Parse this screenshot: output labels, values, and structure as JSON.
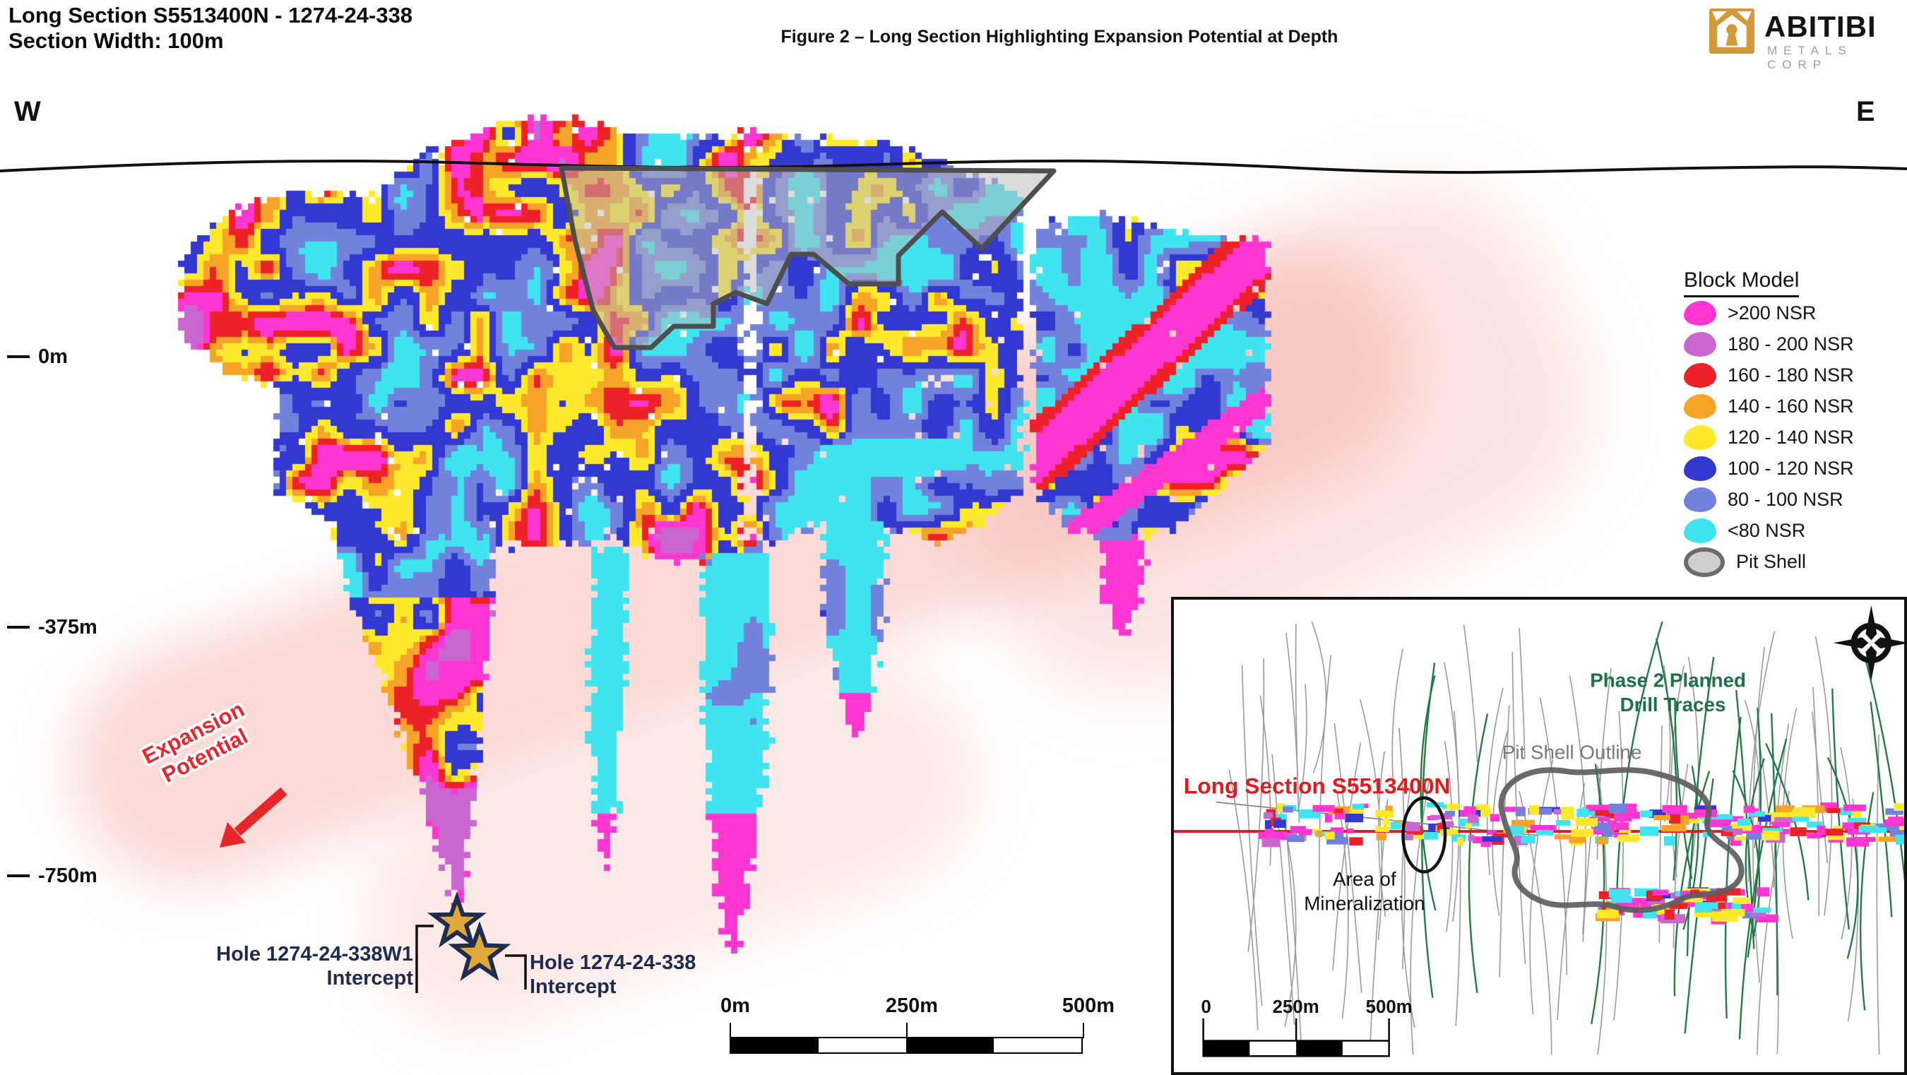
{
  "header": {
    "title_line1": "Long Section S5513400N - 1274-24-338",
    "title_line2": "Section Width: 100m",
    "figure_caption": "Figure 2 – Long Section Highlighting Expansion Potential at Depth",
    "logo": {
      "name": "ABITIBI",
      "subtitle": "METALS CORP",
      "gold": "#d49a3a"
    }
  },
  "section": {
    "direction_west": "W",
    "direction_east": "E",
    "depth_ticks": [
      {
        "label": "0m"
      },
      {
        "label": "-375m"
      },
      {
        "label": "-750m"
      }
    ],
    "expansion_label_line1": "Expansion",
    "expansion_label_line2": "Potential",
    "hole_labels": [
      {
        "line1": "Hole 1274-24-338W1",
        "line2": "Intercept"
      },
      {
        "line1": "Hole 1274-24-338",
        "line2": "Intercept"
      }
    ],
    "scale_bar": {
      "labels": [
        "0m",
        "250m",
        "500m"
      ]
    },
    "surface_color": "#111111",
    "expansion_halo_color": "#f6a6a0"
  },
  "legend": {
    "title": "Block Model",
    "items": [
      {
        "label": ">200 NSR",
        "color": "#ff36d2"
      },
      {
        "label": "180 - 200 NSR",
        "color": "#c966cf"
      },
      {
        "label": "160 - 180 NSR",
        "color": "#ee2128"
      },
      {
        "label": "140 - 160 NSR",
        "color": "#f6a428"
      },
      {
        "label": "120 - 140 NSR",
        "color": "#ffe92d"
      },
      {
        "label": "100 - 120 NSR",
        "color": "#3338d0"
      },
      {
        "label": "80 - 100 NSR",
        "color": "#7282dc"
      },
      {
        "label": "<80 NSR",
        "color": "#3fe4ef"
      },
      {
        "label": "Pit Shell",
        "color": "#cfcfcf",
        "border": "#6b6b6b"
      }
    ]
  },
  "inset": {
    "labels": {
      "phase2_line1": "Phase 2 Planned",
      "phase2_line2": "Drill Traces",
      "pit_shell": "Pit Shell Outline",
      "long_section": "Long Section S5513400N",
      "area_line1": "Area of",
      "area_line2": "Mineralization"
    },
    "scale_bar": {
      "labels": [
        "0",
        "250m",
        "500m"
      ]
    },
    "colors": {
      "planned_trace": "#237a48",
      "existing_trace": "#9a9a9a",
      "section_line": "#e01a1f",
      "pit_outline": "#5d5d5d"
    }
  }
}
